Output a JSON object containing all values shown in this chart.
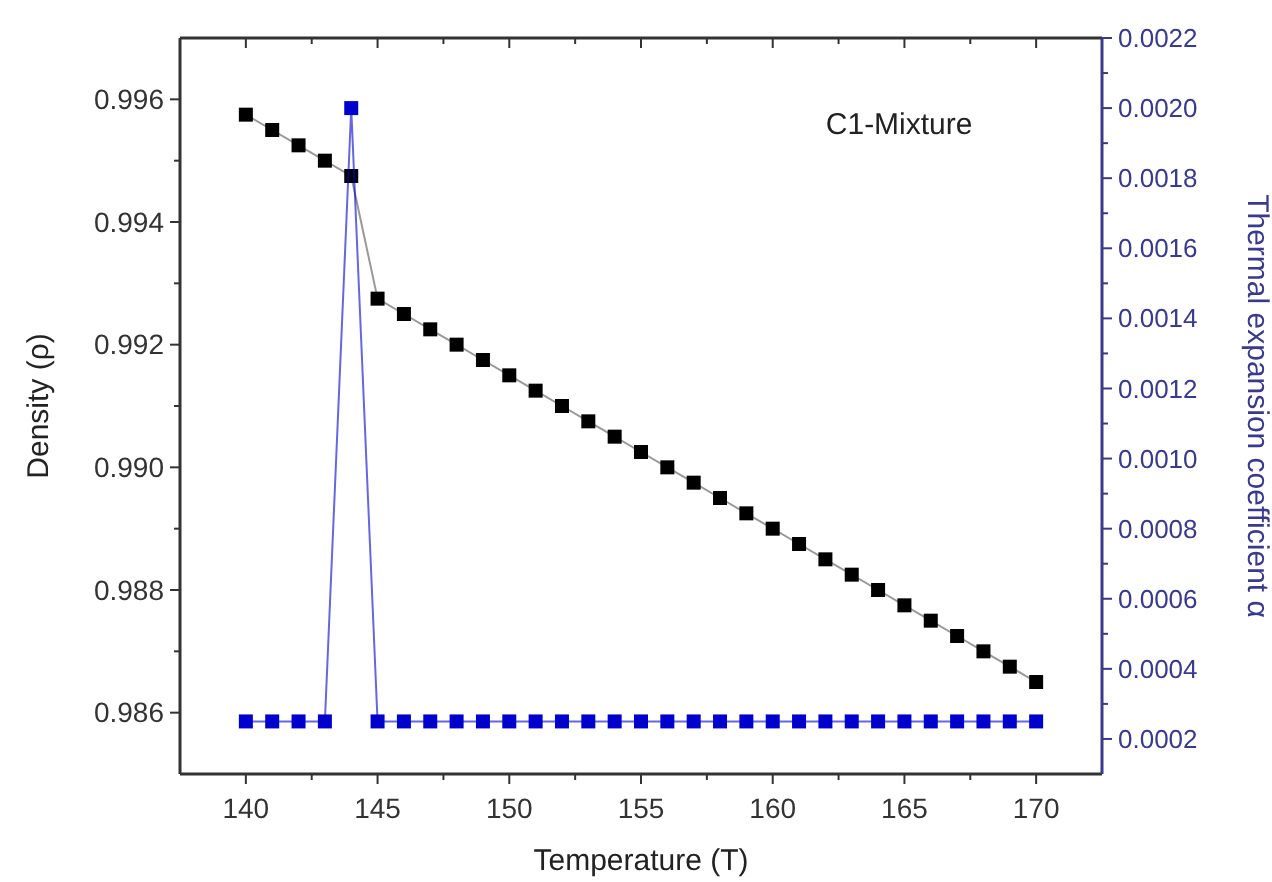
{
  "chart_data": {
    "type": "line",
    "xlabel": "Temperature (T)",
    "ylabel": "Density (ρ)",
    "y2label": "Thermal expansion coefficient α",
    "annotations": [
      "C1-Mixture"
    ],
    "x": [
      140,
      141,
      142,
      143,
      144,
      145,
      146,
      147,
      148,
      149,
      150,
      151,
      152,
      153,
      154,
      155,
      156,
      157,
      158,
      159,
      160,
      161,
      162,
      163,
      164,
      165,
      166,
      167,
      168,
      169,
      170
    ],
    "series": [
      {
        "color": "#000000",
        "values": [
          0.99575,
          0.9955,
          0.99525,
          0.995,
          0.99475,
          0.99275,
          0.9925,
          0.99225,
          0.992,
          0.99175,
          0.9915,
          0.99125,
          0.991,
          0.99075,
          0.9905,
          0.99025,
          0.99,
          0.98975,
          0.9895,
          0.98925,
          0.989,
          0.98875,
          0.9885,
          0.98825,
          0.988,
          0.98775,
          0.9875,
          0.98725,
          0.987,
          0.98675,
          0.9865
        ]
      },
      {
        "color": "#0000cc",
        "axis": "y2",
        "values": [
          0.00025,
          0.00025,
          0.00025,
          0.00025,
          0.002,
          0.00025,
          0.00025,
          0.00025,
          0.00025,
          0.00025,
          0.00025,
          0.00025,
          0.00025,
          0.00025,
          0.00025,
          0.00025,
          0.00025,
          0.00025,
          0.00025,
          0.00025,
          0.00025,
          0.00025,
          0.00025,
          0.00025,
          0.00025,
          0.00025,
          0.00025,
          0.00025,
          0.00025,
          0.00025,
          0.00025
        ]
      }
    ],
    "xlim": [
      137.5,
      172.5
    ],
    "xticks": [
      140,
      {
        "value": 142.5,
        "label": null
      },
      145,
      {
        "value": 147.5,
        "label": null
      },
      150,
      {
        "value": 152.5,
        "label": null
      },
      155,
      {
        "value": 157.5,
        "label": null
      },
      160,
      {
        "value": 162.5,
        "label": null
      },
      165,
      {
        "value": 167.5,
        "label": null
      },
      170
    ],
    "ylim": [
      0.985,
      0.997
    ],
    "yticks": [
      {
        "value": 0.986,
        "label": "0.986"
      },
      {
        "value": 0.987,
        "label": null
      },
      {
        "value": 0.988,
        "label": "0.988"
      },
      {
        "value": 0.989,
        "label": null
      },
      {
        "value": 0.99,
        "label": "0.990"
      },
      {
        "value": 0.991,
        "label": null
      },
      {
        "value": 0.992,
        "label": "0.992"
      },
      {
        "value": 0.993,
        "label": null
      },
      {
        "value": 0.994,
        "label": "0.994"
      },
      {
        "value": 0.995,
        "label": null
      },
      {
        "value": 0.996,
        "label": "0.996"
      }
    ],
    "y2lim": [
      0.0001,
      0.0022
    ],
    "y2ticks": [
      {
        "value": 0.0002,
        "label": "0.0002"
      },
      {
        "value": 0.0003,
        "label": null
      },
      {
        "value": 0.0004,
        "label": "0.0004"
      },
      {
        "value": 0.0005,
        "label": null
      },
      {
        "value": 0.0006,
        "label": "0.0006"
      },
      {
        "value": 0.0007,
        "label": null
      },
      {
        "value": 0.0008,
        "label": "0.0008"
      },
      {
        "value": 0.0009,
        "label": null
      },
      {
        "value": 0.001,
        "label": "0.0010"
      },
      {
        "value": 0.0011,
        "label": null
      },
      {
        "value": 0.0012,
        "label": "0.0012"
      },
      {
        "value": 0.0013,
        "label": null
      },
      {
        "value": 0.0014,
        "label": "0.0014"
      },
      {
        "value": 0.0015,
        "label": null
      },
      {
        "value": 0.0016,
        "label": "0.0016"
      },
      {
        "value": 0.0017,
        "label": null
      },
      {
        "value": 0.0018,
        "label": "0.0018"
      },
      {
        "value": 0.0019,
        "label": null
      },
      {
        "value": 0.002,
        "label": "0.0020"
      },
      {
        "value": 0.0021,
        "label": null
      },
      {
        "value": 0.0022,
        "label": "0.0022"
      }
    ],
    "marker": "square",
    "line_style": "solid"
  }
}
